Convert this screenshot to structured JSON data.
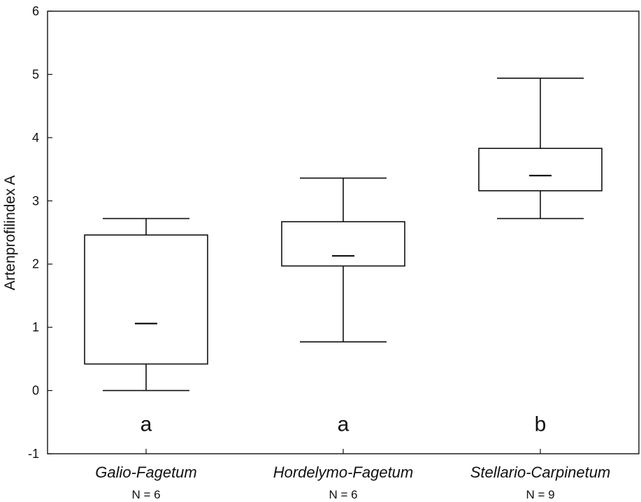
{
  "chart_data": {
    "type": "box",
    "ylabel": "Artenprofilindex A",
    "ylim": [
      -1,
      6
    ],
    "yticks": [
      -1,
      0,
      1,
      2,
      3,
      4,
      5,
      6
    ],
    "groups": [
      {
        "category": "Galio-Fagetum",
        "n_label": "N = 6",
        "letter": "a",
        "whisker_low": 0.0,
        "q1": 0.42,
        "median": 1.06,
        "q3": 2.46,
        "whisker_high": 2.72
      },
      {
        "category": "Hordelymo-Fagetum",
        "n_label": "N = 6",
        "letter": "a",
        "whisker_low": 0.77,
        "q1": 1.97,
        "median": 2.13,
        "q3": 2.67,
        "whisker_high": 3.36
      },
      {
        "category": "Stellario-Carpinetum",
        "n_label": "N = 9",
        "letter": "b",
        "whisker_low": 2.72,
        "q1": 3.16,
        "median": 3.4,
        "q3": 3.83,
        "whisker_high": 4.94
      }
    ],
    "grid": false,
    "legend": "none"
  }
}
